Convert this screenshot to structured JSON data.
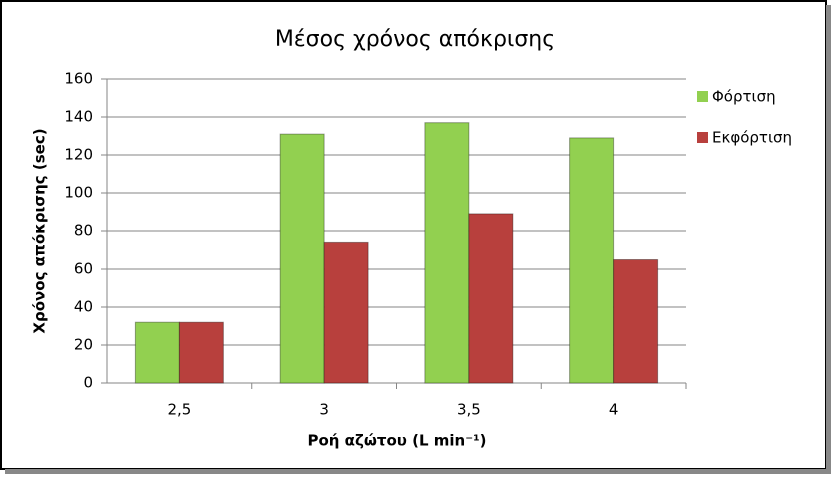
{
  "chart_data": {
    "type": "bar",
    "title": "Μέσος χρόνος απόκρισης",
    "x_label": "Ροή αζώτου  (L min⁻¹)",
    "y_label": "Χρόνος απόκρισης (sec)",
    "categories": [
      "2,5",
      "3",
      "3,5",
      "4"
    ],
    "series": [
      {
        "name": "Φόρτιση",
        "color": "#92d050",
        "values": [
          32,
          131,
          137,
          129
        ]
      },
      {
        "name": "Εκφόρτιση",
        "color": "#b8403d",
        "values": [
          32,
          74,
          89,
          65
        ]
      }
    ],
    "ylim": [
      0,
      160
    ],
    "yticks": [
      0,
      20,
      40,
      60,
      80,
      100,
      120,
      140,
      160
    ],
    "grid": true,
    "legend": "right"
  }
}
